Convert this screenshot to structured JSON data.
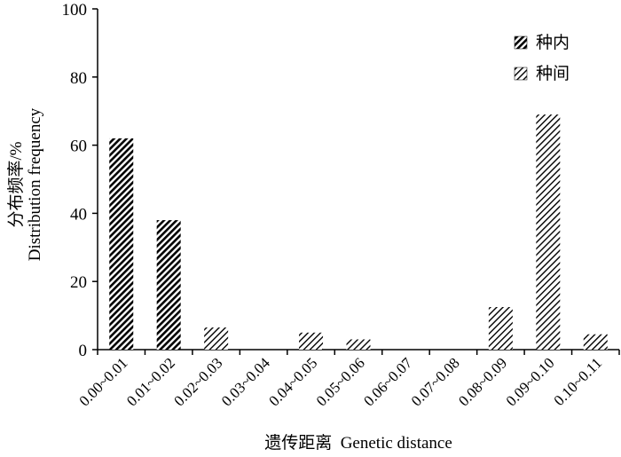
{
  "chart_data": {
    "type": "bar",
    "categories": [
      "0.00~0.01",
      "0.01~0.02",
      "0.02~0.03",
      "0.03~0.04",
      "0.04~0.05",
      "0.05~0.06",
      "0.06~0.07",
      "0.07~0.08",
      "0.08~0.09",
      "0.09~0.10",
      "0.10~0.11"
    ],
    "series": [
      {
        "name": "种内",
        "values": [
          62,
          38,
          0,
          0,
          0,
          0,
          0,
          0,
          0,
          0,
          0
        ],
        "pattern": "dense-diagonal"
      },
      {
        "name": "种间",
        "values": [
          0,
          0,
          6.5,
          0,
          5,
          3,
          0,
          0,
          12.5,
          69,
          4.5
        ],
        "pattern": "light-diagonal"
      }
    ],
    "xlabel": "遗传距离  Genetic distance",
    "ylabel_cn": "分布频率/%",
    "ylabel_en": "Distribution frequency",
    "ylim": [
      0,
      100
    ],
    "yticks": [
      0,
      20,
      40,
      60,
      80,
      100
    ],
    "grid": false,
    "legend_position": "top-right",
    "colors": {
      "bar_stroke": "#000000",
      "background": "#ffffff"
    }
  }
}
